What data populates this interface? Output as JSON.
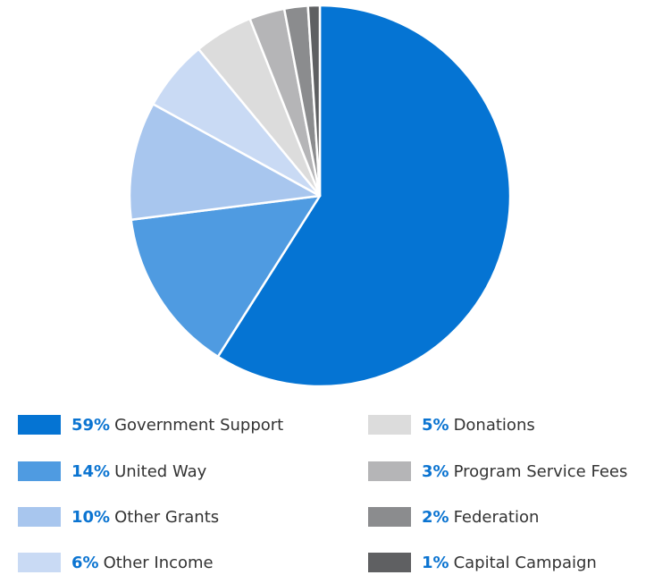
{
  "chart_data": {
    "type": "pie",
    "slices": [
      {
        "label": "Government Support",
        "pct": "59%",
        "value": 59,
        "color": "#0574d3"
      },
      {
        "label": "United Way",
        "pct": "14%",
        "value": 14,
        "color": "#4f9be1"
      },
      {
        "label": "Other Grants",
        "pct": "10%",
        "value": 10,
        "color": "#a8c6ee"
      },
      {
        "label": "Other Income",
        "pct": "6%",
        "value": 6,
        "color": "#c9daf4"
      },
      {
        "label": "Donations",
        "pct": "5%",
        "value": 5,
        "color": "#dcdcdc"
      },
      {
        "label": "Program Service Fees",
        "pct": "3%",
        "value": 3,
        "color": "#b5b5b7"
      },
      {
        "label": "Federation",
        "pct": "2%",
        "value": 2,
        "color": "#8b8c8e"
      },
      {
        "label": "Capital Campaign",
        "pct": "1%",
        "value": 1,
        "color": "#5f6062"
      }
    ],
    "legend": {
      "placement": "bottom",
      "columns": 2
    }
  }
}
